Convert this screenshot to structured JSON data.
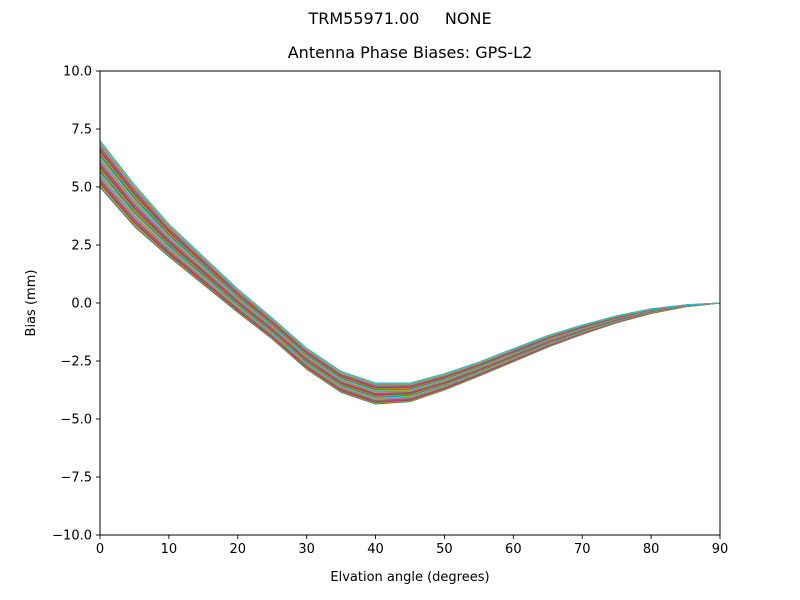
{
  "header": {
    "title": "TRM55971.00     NONE",
    "subtitle": "Antenna Phase Biases: GPS-L2"
  },
  "chart_data": {
    "type": "line",
    "title": "TRM55971.00     NONE",
    "subtitle": "Antenna Phase Biases: GPS-L2",
    "xlabel": "Elvation angle (degrees)",
    "ylabel": "Bias (mm)",
    "xlim": [
      0,
      90
    ],
    "ylim": [
      -10,
      10
    ],
    "grid": false,
    "legend": "none",
    "xticks": [
      0,
      10,
      20,
      30,
      40,
      50,
      60,
      70,
      80,
      90
    ],
    "xtick_labels": [
      "0",
      "10",
      "20",
      "30",
      "40",
      "50",
      "60",
      "70",
      "80",
      "90"
    ],
    "yticks": [
      10.0,
      7.5,
      5.0,
      2.5,
      0.0,
      -2.5,
      -5.0,
      -7.5,
      -10.0
    ],
    "ytick_labels": [
      "10.0",
      "7.5",
      "5.0",
      "2.5",
      "0.0",
      "−2.5",
      "−5.0",
      "−7.5",
      "−10.0"
    ],
    "x": [
      0,
      5,
      10,
      15,
      20,
      25,
      30,
      35,
      40,
      45,
      50,
      55,
      60,
      65,
      70,
      75,
      80,
      85,
      90
    ],
    "band_mean": [
      6.0,
      4.2,
      2.7,
      1.4,
      0.1,
      -1.1,
      -2.4,
      -3.4,
      -3.9,
      -3.85,
      -3.4,
      -2.85,
      -2.25,
      -1.65,
      -1.15,
      -0.7,
      -0.35,
      -0.12,
      0.0
    ],
    "band_halfwidth": [
      1.0,
      0.9,
      0.7,
      0.6,
      0.5,
      0.45,
      0.45,
      0.45,
      0.45,
      0.4,
      0.35,
      0.3,
      0.28,
      0.25,
      0.2,
      0.15,
      0.1,
      0.04,
      0.0
    ],
    "series_count": 30,
    "series_offsets": [
      -1.0,
      -0.93,
      -0.86,
      -0.79,
      -0.72,
      -0.66,
      -0.59,
      -0.52,
      -0.45,
      -0.38,
      -0.31,
      -0.24,
      -0.17,
      -0.1,
      -0.03,
      0.03,
      0.1,
      0.17,
      0.24,
      0.31,
      0.38,
      0.45,
      0.52,
      0.59,
      0.66,
      0.72,
      0.79,
      0.86,
      0.93,
      1.0
    ],
    "palette": [
      "#1f77b4",
      "#ff7f0e",
      "#2ca02c",
      "#d62728",
      "#9467bd",
      "#8c564b",
      "#e377c2",
      "#7f7f7f",
      "#bcbd22",
      "#17becf"
    ]
  }
}
